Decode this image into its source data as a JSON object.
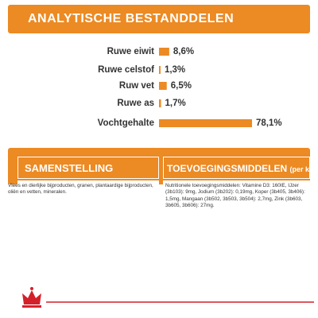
{
  "chart_data": {
    "type": "bar",
    "title": "ANALYTISCHE BESTANDDELEN",
    "categories": [
      "Ruwe eiwit",
      "Ruwe celstof",
      "Ruw vet",
      "Ruwe as",
      "Vochtgehalte"
    ],
    "values": [
      8.6,
      1.3,
      6.5,
      1.7,
      78.1
    ],
    "value_labels": [
      "8,6%",
      "1,3%",
      "6,5%",
      "1,7%",
      "78,1%"
    ],
    "color": "#ec8a23"
  },
  "samenstelling": {
    "title": "SAMENSTELLING",
    "text": "Vlees en dierlijke bijproducten, granen, plantaardige bijproducten, oliën en vetten, mineralen."
  },
  "toevoegingsmiddelen": {
    "title": "TOEVOEGINGSMIDDELEN",
    "unit": "(per kg)",
    "text": "Nutritionele toevoegingsmiddelen: Vitamine D3: 160IE, IJzer (3b103): 9mg, Jodium (3b202): 0,19mg, Koper (3b405, 3b406): 1,5mg, Mangaan (3b502, 3b503, 3b504): 2,7mg, Zink (3b603, 3b605, 3b606): 27mg."
  }
}
